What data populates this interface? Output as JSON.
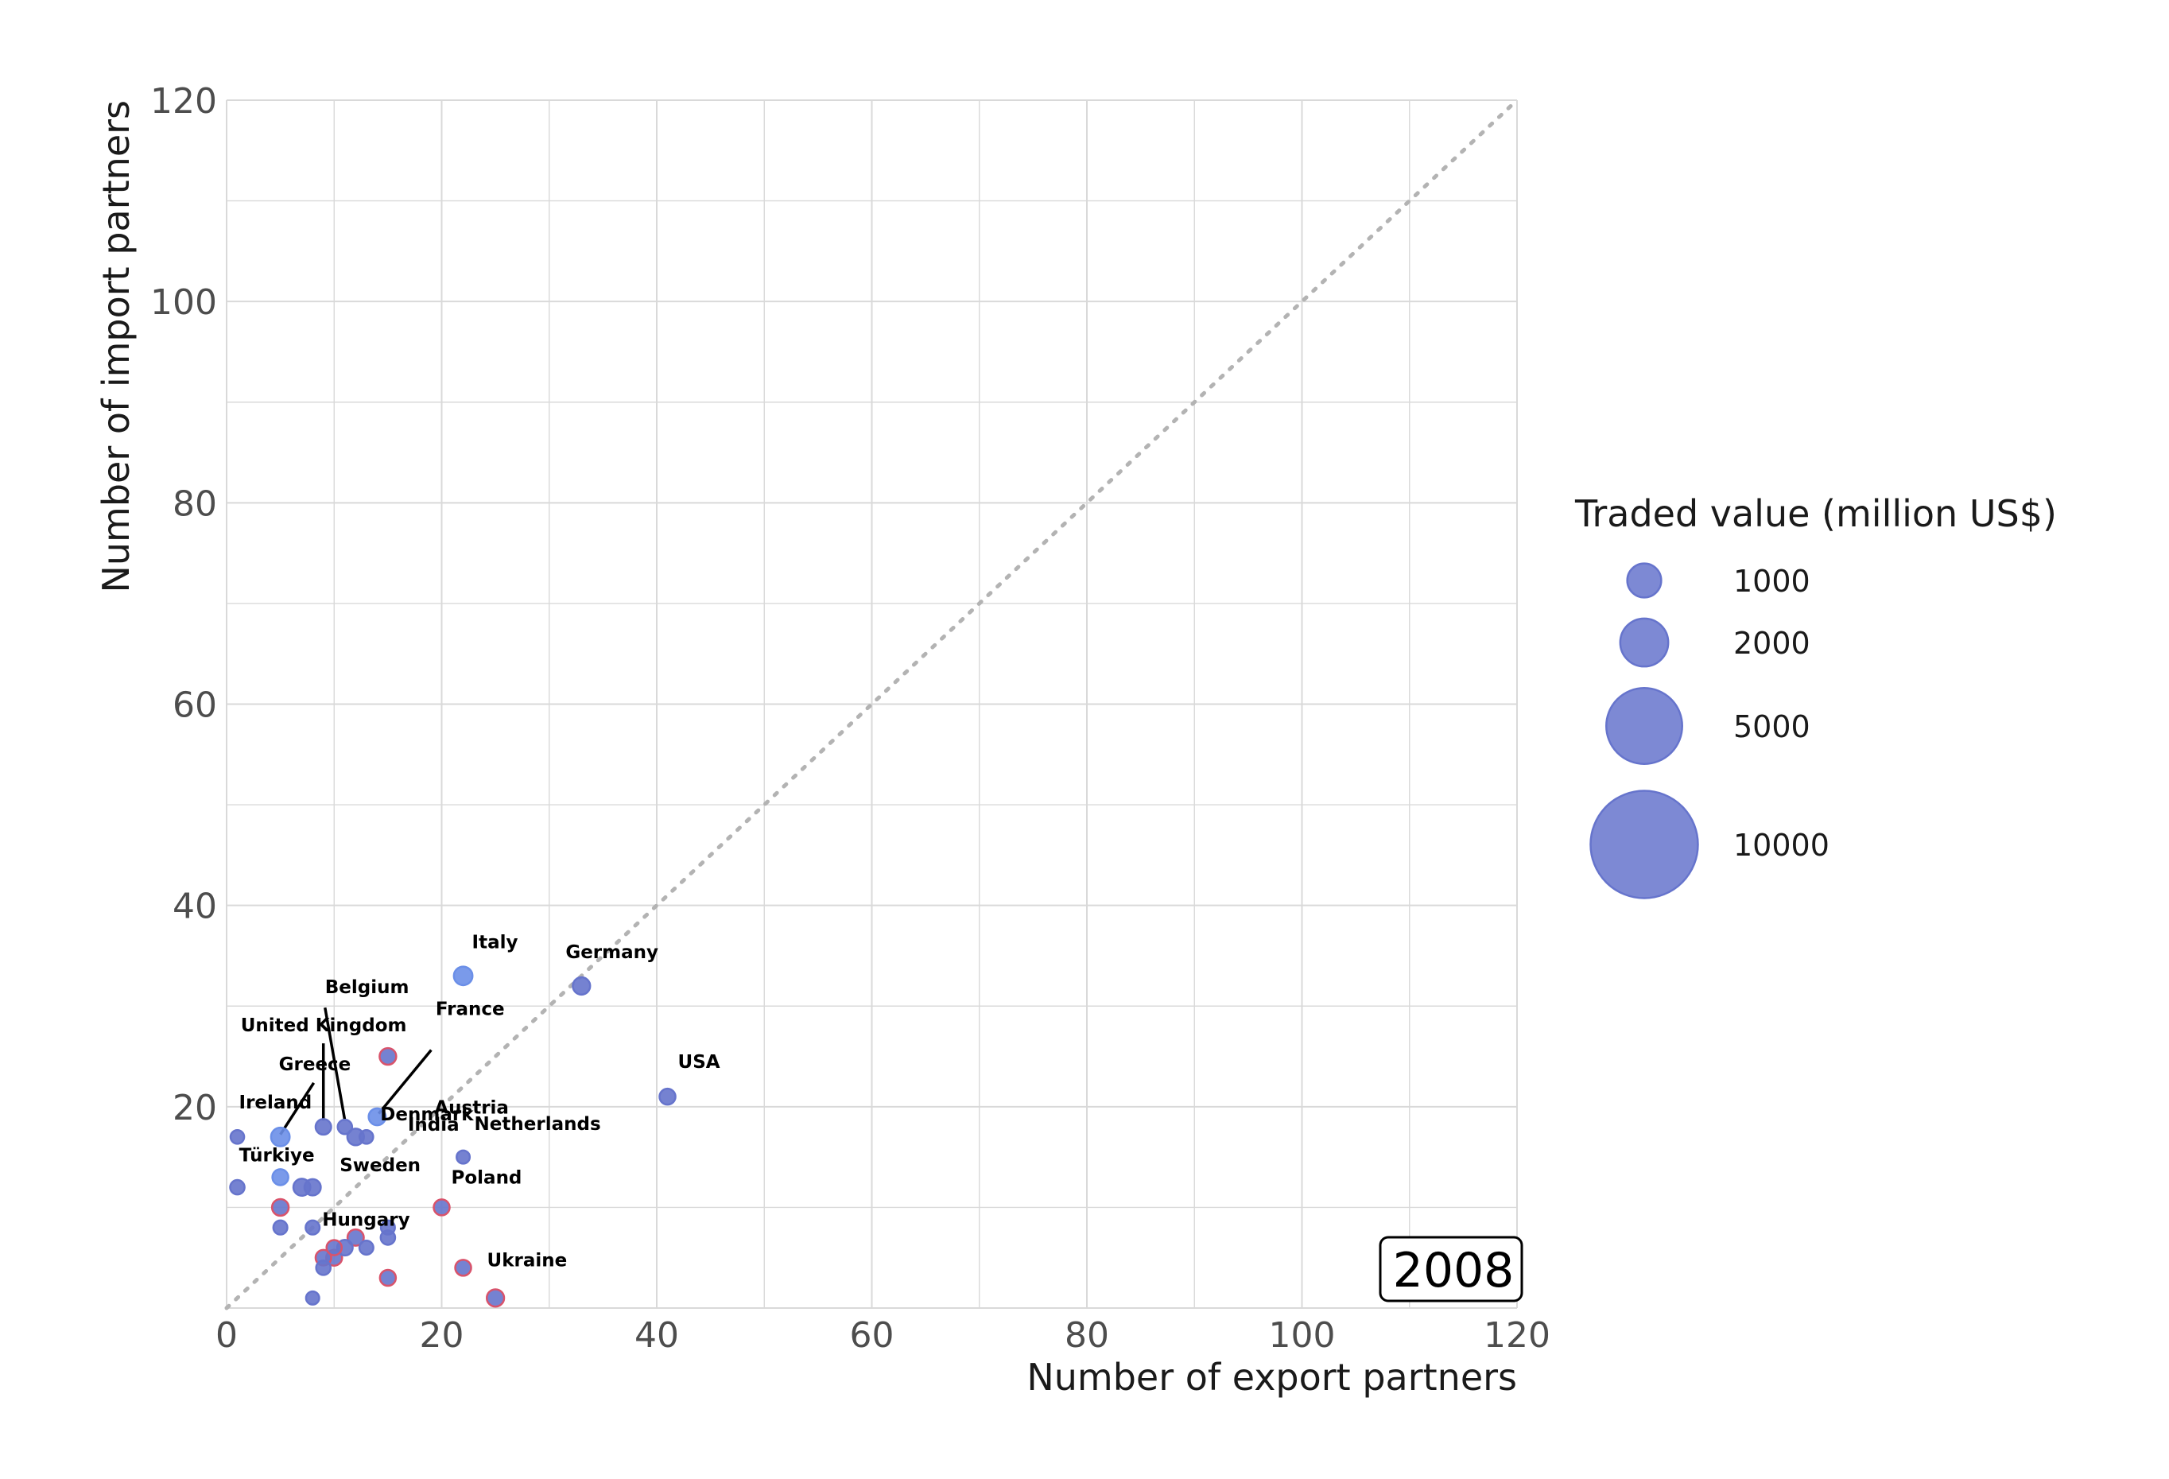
{
  "chart_data": {
    "type": "scatter",
    "title": "",
    "xlabel": "Number of export partners",
    "ylabel": "Number of import partners",
    "xlim": [
      0,
      120
    ],
    "ylim": [
      0,
      120
    ],
    "x_ticks": [
      0,
      20,
      40,
      60,
      80,
      100,
      120
    ],
    "y_ticks": [
      20,
      40,
      60,
      80,
      100,
      120
    ],
    "x_tick_labels": [
      "0",
      "20",
      "40",
      "60",
      "80",
      "100",
      "120"
    ],
    "y_tick_labels": [
      "20",
      "40",
      "60",
      "80",
      "100",
      "120"
    ],
    "grid": true,
    "diagonal_reference_line": true,
    "year": "2008",
    "legend": {
      "title": "Traded value (million US$)",
      "placement": "right",
      "entries": [
        {
          "label": "1000",
          "value": 1000
        },
        {
          "label": "2000",
          "value": 2000
        },
        {
          "label": "5000",
          "value": 5000
        },
        {
          "label": "10000",
          "value": 10000
        }
      ]
    },
    "colors": {
      "fill": "#6674cc",
      "fill_light": "#6b8fe8",
      "outline_red": "#d9536b",
      "grid": "#d9d9d9",
      "diagonal": "#b3b3b3"
    },
    "points": [
      {
        "label": "Italy",
        "x": 22,
        "y": 33,
        "value": 300,
        "tone": "light"
      },
      {
        "label": "Germany",
        "x": 33,
        "y": 32,
        "value": 260,
        "tone": "mid"
      },
      {
        "label": "USA",
        "x": 41,
        "y": 21,
        "value": 220,
        "tone": "mid"
      },
      {
        "label": "France",
        "x": 15,
        "y": 25,
        "value": 240,
        "tone": "red"
      },
      {
        "label": "Austria",
        "x": 14,
        "y": 19,
        "value": 250,
        "tone": "light"
      },
      {
        "label": "Belgium",
        "x": 11,
        "y": 18,
        "value": 180,
        "tone": "mid"
      },
      {
        "label": "United Kingdom",
        "x": 9,
        "y": 18,
        "value": 210,
        "tone": "mid"
      },
      {
        "label": "Greece",
        "x": 5,
        "y": 17,
        "value": 300,
        "tone": "light"
      },
      {
        "label": "Ireland",
        "x": 1,
        "y": 17,
        "value": 160,
        "tone": "mid"
      },
      {
        "label": "Denmark",
        "x": 12,
        "y": 17,
        "value": 240,
        "tone": "mid"
      },
      {
        "label": "India",
        "x": 13,
        "y": 17,
        "value": 160,
        "tone": "mid"
      },
      {
        "label": "Netherlands",
        "x": 22,
        "y": 15,
        "value": 150,
        "tone": "mid"
      },
      {
        "label": "Türkiye",
        "x": 5,
        "y": 13,
        "value": 220,
        "tone": "light"
      },
      {
        "label": "Sweden",
        "x": 8,
        "y": 12,
        "value": 230,
        "tone": "mid"
      },
      {
        "label": "Poland",
        "x": 20,
        "y": 10,
        "value": 220,
        "tone": "red"
      },
      {
        "label": "Hungary",
        "x": 12,
        "y": 7,
        "value": 230,
        "tone": "red"
      },
      {
        "label": "Ukraine",
        "x": 22,
        "y": 4,
        "value": 220,
        "tone": "red"
      },
      {
        "label": "",
        "x": 1,
        "y": 12,
        "value": 180,
        "tone": "mid"
      },
      {
        "label": "",
        "x": 7,
        "y": 12,
        "value": 250,
        "tone": "mid"
      },
      {
        "label": "",
        "x": 5,
        "y": 10,
        "value": 240,
        "tone": "red"
      },
      {
        "label": "",
        "x": 5,
        "y": 8,
        "value": 170,
        "tone": "mid"
      },
      {
        "label": "",
        "x": 8,
        "y": 8,
        "value": 170,
        "tone": "mid"
      },
      {
        "label": "",
        "x": 15,
        "y": 8,
        "value": 170,
        "tone": "mid"
      },
      {
        "label": "",
        "x": 15,
        "y": 7,
        "value": 180,
        "tone": "mid"
      },
      {
        "label": "",
        "x": 10,
        "y": 6,
        "value": 200,
        "tone": "red"
      },
      {
        "label": "",
        "x": 11,
        "y": 6,
        "value": 210,
        "tone": "mid"
      },
      {
        "label": "",
        "x": 13,
        "y": 6,
        "value": 170,
        "tone": "mid"
      },
      {
        "label": "",
        "x": 9,
        "y": 5,
        "value": 210,
        "tone": "red"
      },
      {
        "label": "",
        "x": 10,
        "y": 5,
        "value": 220,
        "tone": "red"
      },
      {
        "label": "",
        "x": 9,
        "y": 4,
        "value": 180,
        "tone": "mid"
      },
      {
        "label": "",
        "x": 15,
        "y": 3,
        "value": 220,
        "tone": "red"
      },
      {
        "label": "",
        "x": 8,
        "y": 1,
        "value": 150,
        "tone": "mid"
      },
      {
        "label": "",
        "x": 25,
        "y": 1,
        "value": 260,
        "tone": "red"
      }
    ]
  }
}
